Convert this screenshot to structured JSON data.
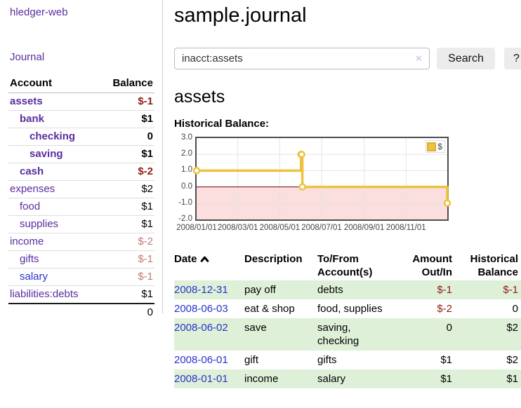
{
  "app": {
    "brand": "hledger-web",
    "nav_journal": "Journal"
  },
  "sidebar": {
    "table": {
      "col_account": "Account",
      "col_balance": "Balance"
    },
    "accounts": [
      {
        "name": "assets",
        "balance": "$-1"
      },
      {
        "name": "bank",
        "balance": "$1"
      },
      {
        "name": "checking",
        "balance": "0"
      },
      {
        "name": "saving",
        "balance": "$1"
      },
      {
        "name": "cash",
        "balance": "$-2"
      },
      {
        "name": "expenses",
        "balance": "$2"
      },
      {
        "name": "food",
        "balance": "$1"
      },
      {
        "name": "supplies",
        "balance": "$1"
      },
      {
        "name": "income",
        "balance": "$-2"
      },
      {
        "name": "gifts",
        "balance": "$-1"
      },
      {
        "name": "salary",
        "balance": "$-1"
      },
      {
        "name": "liabilities:debts",
        "balance": "$1"
      }
    ],
    "total": "0"
  },
  "main": {
    "title": "sample.journal",
    "search": {
      "value": "inacct:assets",
      "clear_icon": "×",
      "button": "Search",
      "help": "?"
    },
    "account_heading": "assets",
    "chart_label": "Historical Balance:"
  },
  "chart_data": {
    "type": "line",
    "style": "step",
    "title": "Historical Balance:",
    "legend": [
      {
        "label": "$",
        "color": "#edc240"
      }
    ],
    "legend_position": "top-right",
    "grid": true,
    "ylim": [
      -2.0,
      3.0
    ],
    "y_ticks": [
      3.0,
      2.0,
      1.0,
      0.0,
      -1.0,
      -2.0
    ],
    "x_ticks": [
      {
        "label": "2008/01/01",
        "day": 0
      },
      {
        "label": "2008/03/01",
        "day": 60
      },
      {
        "label": "2008/05/01",
        "day": 121
      },
      {
        "label": "2008/07/01",
        "day": 182
      },
      {
        "label": "2008/09/01",
        "day": 244
      },
      {
        "label": "2008/11/01",
        "day": 305
      }
    ],
    "xlim_days": [
      0,
      365
    ],
    "series": [
      {
        "name": "$",
        "color": "#edc240",
        "points": [
          {
            "date": "2008-01-01",
            "day": 0,
            "value": 1
          },
          {
            "date": "2008-06-01",
            "day": 152,
            "value": 2
          },
          {
            "date": "2008-06-02",
            "day": 153,
            "value": 2
          },
          {
            "date": "2008-06-03",
            "day": 154,
            "value": 0
          },
          {
            "date": "2008-12-31",
            "day": 365,
            "value": -1
          }
        ]
      }
    ],
    "zero_line_color": "#7a0000",
    "negative_region_color": "#fbdede"
  },
  "register": {
    "headers": [
      {
        "l1": "Date",
        "l2": ""
      },
      {
        "l1": "Description",
        "l2": ""
      },
      {
        "l1": "To/From",
        "l2": "Account(s)"
      },
      {
        "l1": "Amount",
        "l2": "Out/In"
      },
      {
        "l1": "Historical",
        "l2": "Balance"
      }
    ],
    "rows": [
      {
        "date": "2008-12-31",
        "description": "pay off",
        "accounts": "debts",
        "amount": "$-1",
        "balance": "$-1"
      },
      {
        "date": "2008-06-03",
        "description": "eat & shop",
        "accounts": "food, supplies",
        "amount": "$-2",
        "balance": "0"
      },
      {
        "date": "2008-06-02",
        "description": "save",
        "accounts": "saving, checking",
        "amount": "0",
        "balance": "$2"
      },
      {
        "date": "2008-06-01",
        "description": "gift",
        "accounts": "gifts",
        "amount": "$1",
        "balance": "$2"
      },
      {
        "date": "2008-01-01",
        "description": "income",
        "accounts": "salary",
        "amount": "$1",
        "balance": "$1"
      }
    ]
  },
  "colors": {
    "link_purple": "#5a2da0",
    "link_blue": "#2733cc",
    "negative": "#8f1d12",
    "negative_soft": "#bf7b72",
    "row_stripe_green": "#dff0d8",
    "series_yellow": "#edc240"
  }
}
